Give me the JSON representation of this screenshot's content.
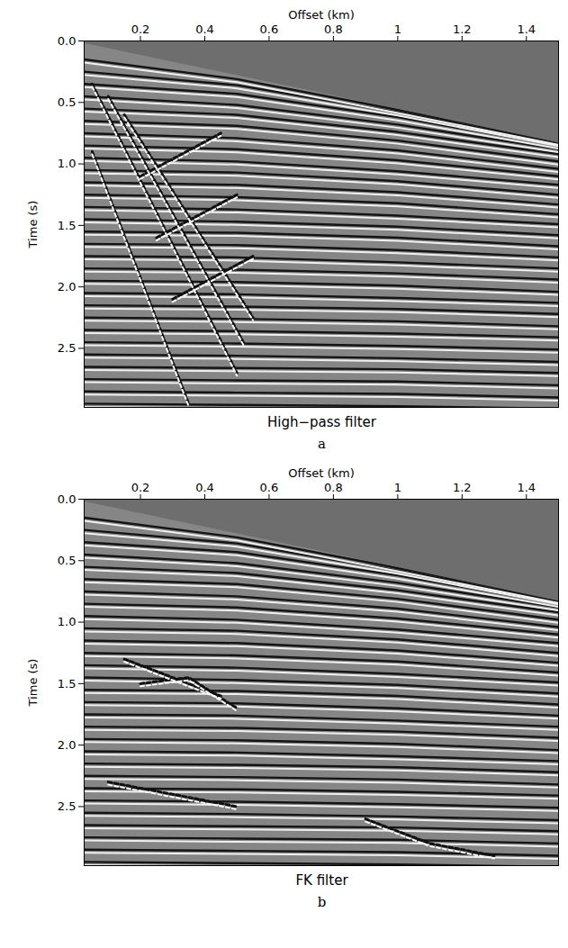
{
  "chart_data": [
    {
      "type": "seismic",
      "panel": "a",
      "title": "High−pass filter",
      "xlabel": "Offset (km)",
      "ylabel": "Time (s)",
      "xlim": [
        0.025,
        1.5
      ],
      "ylim": [
        0,
        2.98
      ],
      "xticks": [
        0.2,
        0.4,
        0.6,
        0.8,
        1,
        1.2,
        1.4
      ],
      "yticks": [
        {
          "value": 0,
          "label": "0.0"
        },
        0.5,
        {
          "value": 1,
          "label": "1.0"
        },
        1.5,
        {
          "value": 2,
          "label": "2.0"
        },
        2.5
      ],
      "mute": {
        "offsets": [
          0.025,
          1.5
        ],
        "times": [
          0.02,
          0.83
        ]
      },
      "reflections": {
        "offsets": [
          0.025,
          0.5,
          1,
          1.5
        ],
        "times": [
          [
            0.15,
            0.31,
            0.56,
            0.82
          ],
          [
            0.25,
            0.36,
            0.58,
            0.83
          ],
          [
            0.35,
            0.43,
            0.62,
            0.85
          ],
          [
            0.45,
            0.52,
            0.68,
            0.88
          ],
          [
            0.55,
            0.6,
            0.74,
            0.92
          ],
          [
            0.65,
            0.69,
            0.81,
            0.98
          ],
          [
            0.75,
            0.79,
            0.89,
            1.04
          ],
          [
            0.85,
            0.88,
            0.97,
            1.1
          ],
          [
            0.95,
            0.98,
            1.06,
            1.17
          ],
          [
            1.05,
            1.07,
            1.14,
            1.25
          ],
          [
            1.15,
            1.17,
            1.23,
            1.33
          ],
          [
            1.25,
            1.27,
            1.32,
            1.41
          ],
          [
            1.35,
            1.37,
            1.42,
            1.49
          ],
          [
            1.45,
            1.47,
            1.51,
            1.58
          ],
          [
            1.55,
            1.56,
            1.6,
            1.67
          ],
          [
            1.65,
            1.66,
            1.7,
            1.76
          ],
          [
            1.75,
            1.76,
            1.8,
            1.85
          ],
          [
            1.85,
            1.86,
            1.89,
            1.94
          ],
          [
            1.95,
            1.96,
            1.99,
            2.04
          ],
          [
            2.05,
            2.06,
            2.09,
            2.13
          ],
          [
            2.15,
            2.16,
            2.18,
            2.22
          ],
          [
            2.25,
            2.26,
            2.28,
            2.32
          ],
          [
            2.35,
            2.36,
            2.38,
            2.41
          ],
          [
            2.45,
            2.46,
            2.48,
            2.51
          ],
          [
            2.55,
            2.56,
            2.58,
            2.61
          ],
          [
            2.65,
            2.66,
            2.67,
            2.7
          ],
          [
            2.75,
            2.76,
            2.77,
            2.8
          ],
          [
            2.85,
            2.86,
            2.87,
            2.9
          ],
          [
            2.95,
            2.96,
            2.97,
            2.99
          ]
        ]
      },
      "noise": [
        {
          "offsets": [
            0.05,
            0.5
          ],
          "times": [
            0.35,
            2.7
          ]
        },
        {
          "offsets": [
            0.1,
            0.52
          ],
          "times": [
            0.45,
            2.45
          ]
        },
        {
          "offsets": [
            0.15,
            0.55
          ],
          "times": [
            0.6,
            2.25
          ]
        },
        {
          "offsets": [
            0.05,
            0.35
          ],
          "times": [
            0.9,
            2.95
          ]
        },
        {
          "offsets": [
            0.2,
            0.45
          ],
          "times": [
            1.1,
            0.75
          ]
        },
        {
          "offsets": [
            0.25,
            0.5
          ],
          "times": [
            1.6,
            1.25
          ]
        },
        {
          "offsets": [
            0.3,
            0.55
          ],
          "times": [
            2.1,
            1.75
          ]
        }
      ]
    },
    {
      "type": "seismic",
      "panel": "b",
      "title": "FK filter",
      "xlabel": "Offset (km)",
      "ylabel": "Time (s)",
      "xlim": [
        0.025,
        1.5
      ],
      "ylim": [
        0,
        2.98
      ],
      "xticks": [
        0.2,
        0.4,
        0.6,
        0.8,
        1,
        1.2,
        1.4
      ],
      "yticks": [
        {
          "value": 0,
          "label": "0.0"
        },
        0.5,
        {
          "value": 1,
          "label": "1.0"
        },
        1.5,
        {
          "value": 2,
          "label": "2.0"
        },
        2.5
      ],
      "mute": {
        "offsets": [
          0.025,
          1.5
        ],
        "times": [
          0.02,
          0.83
        ]
      },
      "reflections": {
        "offsets": [
          0.025,
          0.5,
          1,
          1.5
        ],
        "times": [
          [
            0.15,
            0.31,
            0.56,
            0.82
          ],
          [
            0.25,
            0.36,
            0.58,
            0.83
          ],
          [
            0.35,
            0.43,
            0.62,
            0.85
          ],
          [
            0.45,
            0.52,
            0.68,
            0.88
          ],
          [
            0.55,
            0.6,
            0.74,
            0.92
          ],
          [
            0.65,
            0.69,
            0.81,
            0.98
          ],
          [
            0.75,
            0.79,
            0.89,
            1.04
          ],
          [
            0.85,
            0.88,
            0.97,
            1.1
          ],
          [
            0.95,
            0.98,
            1.06,
            1.17
          ],
          [
            1.05,
            1.07,
            1.14,
            1.25
          ],
          [
            1.15,
            1.17,
            1.23,
            1.33
          ],
          [
            1.25,
            1.27,
            1.32,
            1.41
          ],
          [
            1.35,
            1.37,
            1.42,
            1.49
          ],
          [
            1.45,
            1.47,
            1.51,
            1.58
          ],
          [
            1.55,
            1.56,
            1.6,
            1.67
          ],
          [
            1.65,
            1.66,
            1.7,
            1.76
          ],
          [
            1.75,
            1.76,
            1.8,
            1.85
          ],
          [
            1.85,
            1.86,
            1.89,
            1.94
          ],
          [
            1.95,
            1.96,
            1.99,
            2.04
          ],
          [
            2.05,
            2.06,
            2.09,
            2.13
          ],
          [
            2.15,
            2.16,
            2.18,
            2.22
          ],
          [
            2.25,
            2.26,
            2.28,
            2.32
          ],
          [
            2.35,
            2.36,
            2.38,
            2.41
          ],
          [
            2.45,
            2.46,
            2.48,
            2.51
          ],
          [
            2.55,
            2.56,
            2.58,
            2.61
          ],
          [
            2.65,
            2.66,
            2.67,
            2.7
          ],
          [
            2.75,
            2.76,
            2.77,
            2.8
          ],
          [
            2.85,
            2.86,
            2.87,
            2.9
          ],
          [
            2.95,
            2.96,
            2.97,
            2.99
          ]
        ]
      },
      "noise": [
        {
          "offsets": [
            0.15,
            0.3,
            0.45
          ],
          "times": [
            1.3,
            1.45,
            1.6
          ]
        },
        {
          "offsets": [
            0.2,
            0.35,
            0.5
          ],
          "times": [
            1.5,
            1.45,
            1.7
          ]
        },
        {
          "offsets": [
            0.1,
            0.3,
            0.5
          ],
          "times": [
            2.3,
            2.4,
            2.5
          ]
        },
        {
          "offsets": [
            0.9,
            1.1,
            1.3
          ],
          "times": [
            2.6,
            2.8,
            2.9
          ]
        }
      ]
    }
  ]
}
